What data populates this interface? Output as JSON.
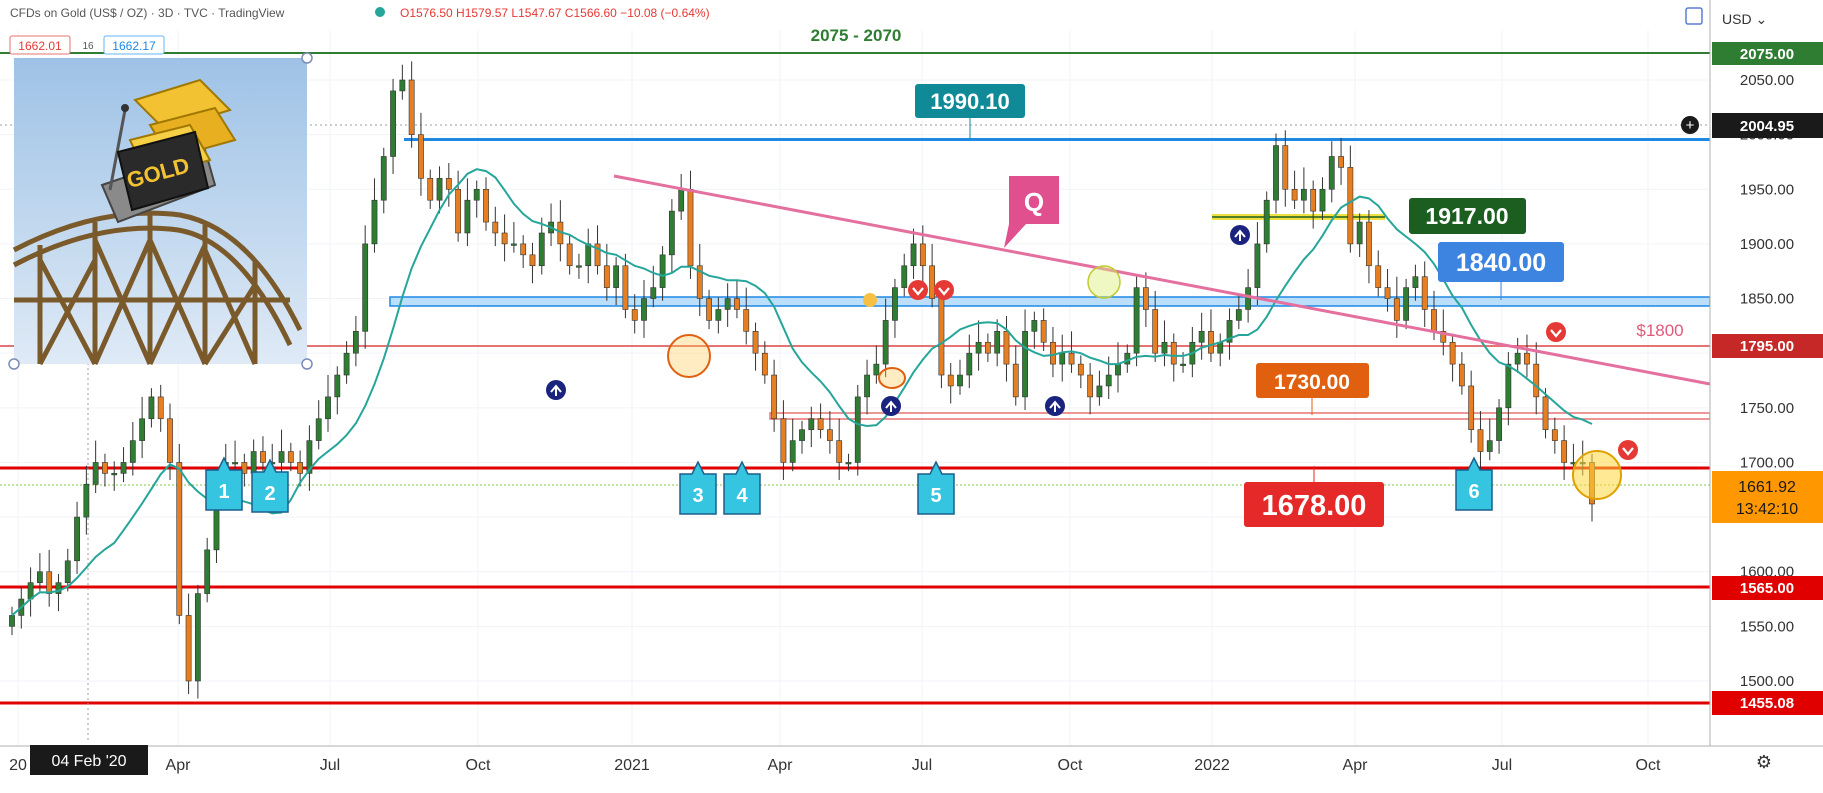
{
  "header": {
    "symbol": "CFDs on Gold (US$ / OZ)",
    "interval": "3D",
    "source": "TVC",
    "platform": "TradingView",
    "ohlc": "O1576.50 H1579.57 L1547.67 C1566.60 −10.08 (−0.64%)",
    "sell_price": "1662.01",
    "spread": "16",
    "buy_price": "1662.17",
    "indicator_count": "9",
    "currency": "USD"
  },
  "thumbnail": {
    "caption": "GOLD"
  },
  "crosshair": {
    "date_label": "04 Feb '20",
    "price_label": "2004.95"
  },
  "chart_data": {
    "type": "candlestick",
    "title": "CFDs on Gold (US$ / OZ) · 3D · TVC",
    "y_axis": {
      "ticks": [
        1500.0,
        1550.0,
        1600.0,
        1650.0,
        1700.0,
        1750.0,
        1800.0,
        1850.0,
        1900.0,
        1950.0,
        2000.0,
        2050.0
      ],
      "range": [
        1422,
        2087
      ]
    },
    "x_axis": {
      "ticks": [
        "20",
        "Apr",
        "Jul",
        "Oct",
        "2021",
        "Apr",
        "Jul",
        "Oct",
        "2022",
        "Apr",
        "Jul",
        "Oct"
      ]
    },
    "last_price": {
      "value": "1661.92",
      "countdown": "13:42:10"
    },
    "levels": [
      {
        "value": 2075.0,
        "label": "2075.00",
        "color": "#2e7d32"
      },
      {
        "value": 1795.0,
        "label": "1795.00",
        "color": "#c62828"
      },
      {
        "value": 1565.0,
        "label": "1565.00",
        "color": "#e00000"
      },
      {
        "value": 1455.08,
        "label": "1455.08",
        "color": "#e00000"
      }
    ],
    "annotations": [
      {
        "text": "2075 - 2070",
        "color": "#2e7d32"
      },
      {
        "text": "1990.10",
        "color": "#0f8a96"
      },
      {
        "text": "Q",
        "color": "#e0508f"
      },
      {
        "text": "1917.00",
        "color": "#1b5e20"
      },
      {
        "text": "1840.00",
        "color": "#3d84e0"
      },
      {
        "text": "$1800",
        "color": "#e05a7a"
      },
      {
        "text": "1730.00",
        "color": "#e06010"
      },
      {
        "text": "1678.00",
        "color": "#e52929"
      }
    ],
    "markers": [
      "1",
      "2",
      "3",
      "4",
      "5",
      "6"
    ],
    "series": [
      {
        "type": "candles",
        "close": [
          1560,
          1575,
          1590,
          1600,
          1580,
          1590,
          1610,
          1650,
          1680,
          1700,
          1690,
          1690,
          1700,
          1720,
          1740,
          1760,
          1740,
          1700,
          1560,
          1500,
          1580,
          1620,
          1680,
          1700,
          1700,
          1690,
          1710,
          1700,
          1700,
          1710,
          1700,
          1690,
          1720,
          1740,
          1760,
          1780,
          1800,
          1820,
          1900,
          1940,
          1980,
          2040,
          2050,
          2000,
          1960,
          1940,
          1960,
          1950,
          1910,
          1940,
          1950,
          1920,
          1910,
          1900,
          1900,
          1890,
          1880,
          1910,
          1920,
          1900,
          1880,
          1880,
          1900,
          1880,
          1860,
          1880,
          1840,
          1830,
          1850,
          1860,
          1890,
          1930,
          1950,
          1880,
          1850,
          1830,
          1840,
          1850,
          1840,
          1820,
          1800,
          1780,
          1740,
          1700,
          1720,
          1730,
          1740,
          1730,
          1720,
          1700,
          1700,
          1760,
          1780,
          1790,
          1830,
          1860,
          1880,
          1900,
          1880,
          1850,
          1780,
          1770,
          1780,
          1800,
          1810,
          1800,
          1820,
          1790,
          1760,
          1820,
          1830,
          1810,
          1790,
          1800,
          1790,
          1780,
          1760,
          1770,
          1780,
          1790,
          1800,
          1860,
          1840,
          1800,
          1810,
          1790,
          1790,
          1810,
          1820,
          1800,
          1810,
          1830,
          1840,
          1860,
          1900,
          1940,
          1990,
          1950,
          1940,
          1950,
          1930,
          1950,
          1980,
          1970,
          1900,
          1920,
          1880,
          1860,
          1850,
          1830,
          1860,
          1870,
          1840,
          1820,
          1810,
          1790,
          1770,
          1730,
          1710,
          1720,
          1750,
          1790,
          1800,
          1790,
          1760,
          1730,
          1720,
          1700,
          1700,
          1700,
          1662
        ]
      },
      {
        "type": "moving-average",
        "color": "#26a69a"
      }
    ]
  }
}
